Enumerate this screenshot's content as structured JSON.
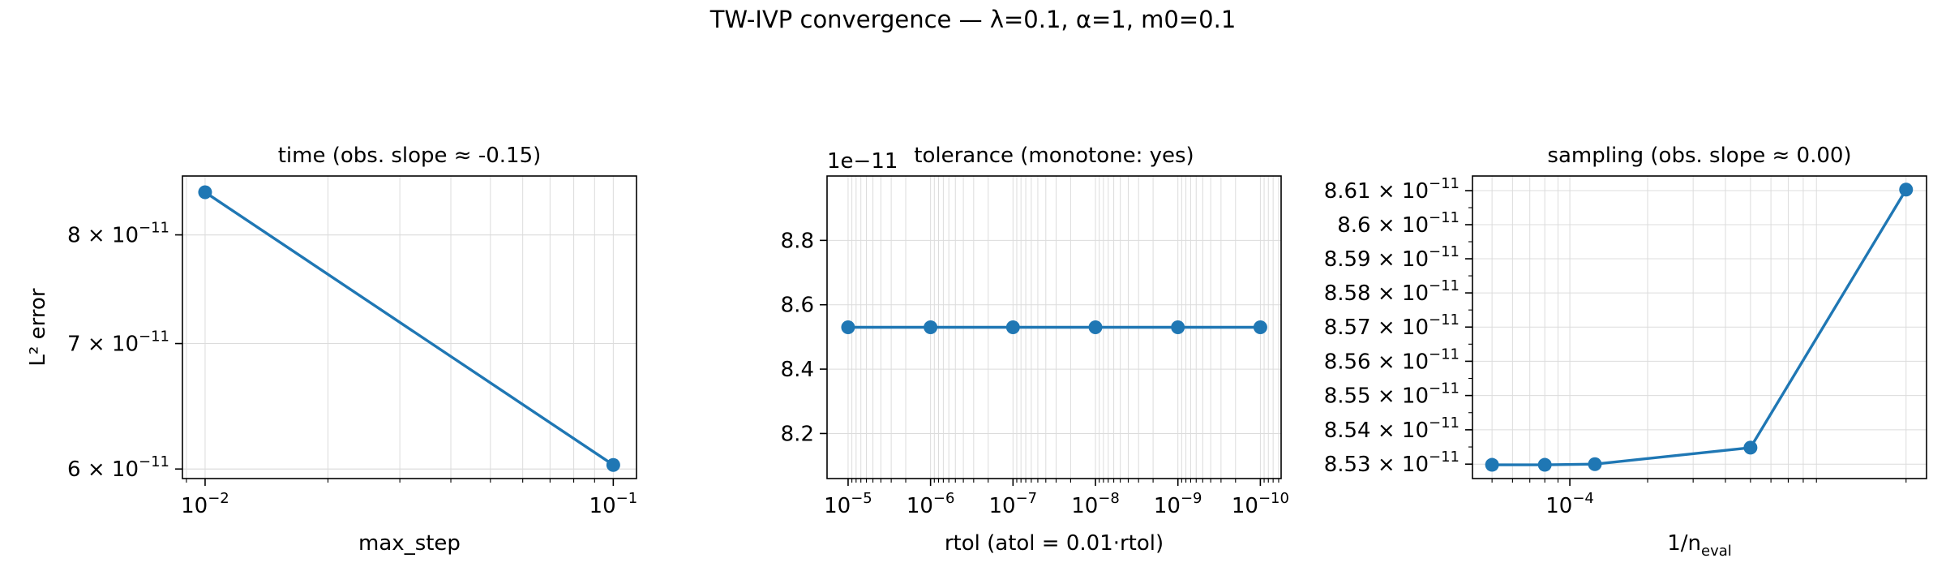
{
  "figure": {
    "title": "TW-IVP convergence — λ=0.1, α=1, m0=0.1"
  },
  "style": {
    "series_color": "#1f77b4"
  },
  "chart_data": [
    {
      "type": "line",
      "title": "time (obs. slope ≈ -0.15)",
      "xlabel": "max_step",
      "ylabel": "L² error",
      "x_scale": "log",
      "y_scale": "log",
      "x": [
        0.01,
        0.1
      ],
      "y": [
        8.43e-11,
        6.03e-11
      ],
      "xlim": [
        0.0088,
        0.114
      ],
      "ylim": [
        5.93e-11,
        8.6e-11
      ],
      "x_ticks": [
        {
          "value": 0.01,
          "base": "10",
          "exp": "−2"
        },
        {
          "value": 0.1,
          "base": "10",
          "exp": "−1"
        }
      ],
      "y_ticks": [
        {
          "value": 6e-11,
          "base": "6 × 10",
          "exp": "−11"
        },
        {
          "value": 7e-11,
          "base": "7 × 10",
          "exp": "−11"
        },
        {
          "value": 8e-11,
          "base": "8 × 10",
          "exp": "−11"
        }
      ],
      "grid": true
    },
    {
      "type": "line",
      "title": "tolerance (monotone: yes)",
      "xlabel": "rtol (atol = 0.01·rtol)",
      "ylabel": "",
      "x_scale": "log",
      "x_inverted": true,
      "y_scale": "linear",
      "y_offset_text": "1e−11",
      "x": [
        1e-05,
        1e-06,
        1e-07,
        1e-08,
        1e-09,
        1e-10
      ],
      "y": [
        8.53,
        8.53,
        8.53,
        8.53,
        8.53,
        8.53
      ],
      "xlim": [
        1.8e-05,
        5.6e-11
      ],
      "ylim": [
        8.06,
        9.0
      ],
      "x_ticks": [
        {
          "value": 1e-05,
          "base": "10",
          "exp": "−5"
        },
        {
          "value": 1e-06,
          "base": "10",
          "exp": "−6"
        },
        {
          "value": 1e-07,
          "base": "10",
          "exp": "−7"
        },
        {
          "value": 1e-08,
          "base": "10",
          "exp": "−8"
        },
        {
          "value": 1e-09,
          "base": "10",
          "exp": "−9"
        },
        {
          "value": 1e-10,
          "base": "10",
          "exp": "−10"
        }
      ],
      "y_ticks": [
        {
          "value": 8.2,
          "label": "8.2"
        },
        {
          "value": 8.4,
          "label": "8.4"
        },
        {
          "value": 8.6,
          "label": "8.6"
        },
        {
          "value": 8.8,
          "label": "8.8"
        }
      ],
      "grid": true
    },
    {
      "type": "line",
      "title": "sampling (obs. slope ≈ 0.00)",
      "xlabel": "1/n",
      "xlabel_sub": "eval",
      "ylabel": "",
      "x_scale": "log",
      "y_scale": "log",
      "x": [
        5e-05,
        8e-05,
        0.000125,
        0.0005,
        0.002
      ],
      "y": [
        8.5298e-11,
        8.5298e-11,
        8.53e-11,
        8.5348e-11,
        8.6103e-11
      ],
      "xlim": [
        4.2e-05,
        0.0024
      ],
      "ylim": [
        8.5258e-11,
        8.6143e-11
      ],
      "x_ticks": [
        {
          "value": 0.0001,
          "base": "10",
          "exp": "−4"
        }
      ],
      "y_ticks": [
        {
          "value": 8.53e-11,
          "base": "8.53 × 10",
          "exp": "−11"
        },
        {
          "value": 8.54e-11,
          "base": "8.54 × 10",
          "exp": "−11"
        },
        {
          "value": 8.55e-11,
          "base": "8.55 × 10",
          "exp": "−11"
        },
        {
          "value": 8.56e-11,
          "base": "8.56 × 10",
          "exp": "−11"
        },
        {
          "value": 8.57e-11,
          "base": "8.57 × 10",
          "exp": "−11"
        },
        {
          "value": 8.58e-11,
          "base": "8.58 × 10",
          "exp": "−11"
        },
        {
          "value": 8.59e-11,
          "base": "8.59 × 10",
          "exp": "−11"
        },
        {
          "value": 8.6e-11,
          "base": "8.6 × 10",
          "exp": "−11"
        },
        {
          "value": 8.61e-11,
          "base": "8.61 × 10",
          "exp": "−11"
        }
      ],
      "grid": true
    }
  ]
}
